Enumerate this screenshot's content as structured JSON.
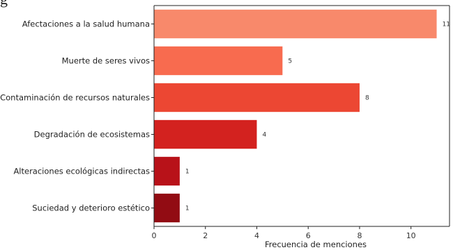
{
  "page": {
    "top_fragment": "g"
  },
  "chart_data": {
    "type": "bar",
    "orientation": "horizontal",
    "title": "",
    "xlabel": "Frecuencia de menciones",
    "ylabel": "",
    "xlim": [
      0,
      11.5
    ],
    "xticks": [
      0,
      2,
      4,
      6,
      8,
      10
    ],
    "grid": false,
    "legend": "none",
    "categories": [
      "Afectaciones a la salud humana",
      "Muerte de seres vivos",
      "Contaminación de recursos naturales",
      "Degradación de ecosistemas",
      "Alteraciones ecológicas indirectas",
      "Suciedad y deterioro estético"
    ],
    "values": [
      11,
      5,
      8,
      4,
      1,
      1
    ],
    "value_labels": [
      "11",
      "5",
      "8",
      "4",
      "1",
      "1"
    ],
    "colors": [
      "#f8896b",
      "#f86b4f",
      "#ec4733",
      "#d3221f",
      "#b81219",
      "#920c13"
    ]
  }
}
